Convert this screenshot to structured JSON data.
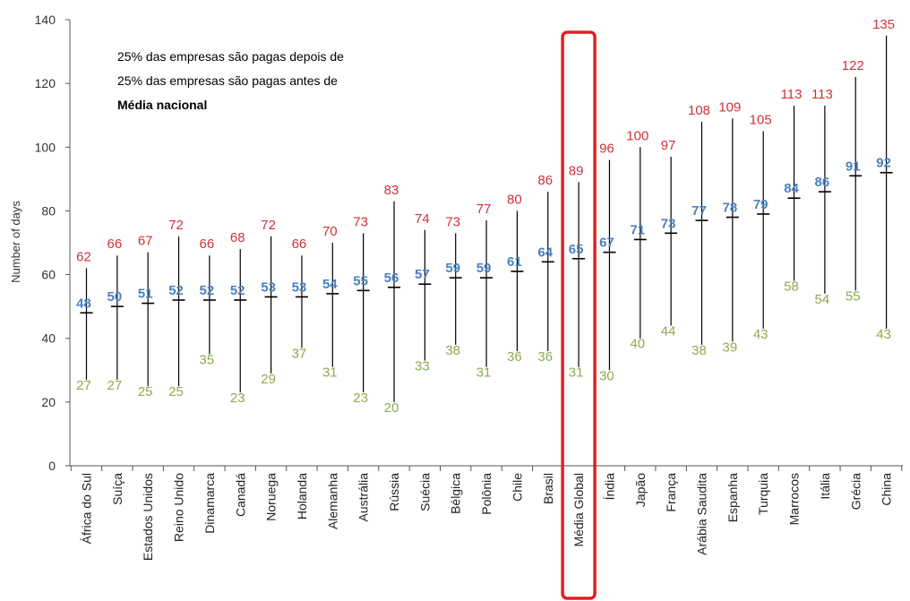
{
  "colors": {
    "upper": "#d0313a",
    "lower": "#8bab4f",
    "median": "#4a80c0",
    "highlight": "#e02020",
    "axis": "#555555",
    "whisker": "#000000"
  },
  "legend": {
    "upper_label": "25% das empresas são pagas depois de",
    "lower_label": "25% das empresas são pagas antes de",
    "median_label": "Média nacional"
  },
  "chart_data": {
    "type": "bar",
    "ylabel": "Number of days",
    "xlabel": "",
    "ylim": [
      0,
      140
    ],
    "yticks": [
      0,
      20,
      40,
      60,
      80,
      100,
      120,
      140
    ],
    "highlight_category": "Média Global",
    "categories": [
      "África do Sul",
      "Suíça",
      "Estados Unidos",
      "Reino Unido",
      "Dinamarca",
      "Canadá",
      "Noruega",
      "Holanda",
      "Alemanha",
      "Austrália",
      "Rússia",
      "Suécia",
      "Bélgica",
      "Polônia",
      "Chile",
      "Brasil",
      "Média Global",
      "Índia",
      "Japão",
      "França",
      "Arábia Saudita",
      "Espanha",
      "Turquia",
      "Marrocos",
      "Itália",
      "Grécia",
      "China"
    ],
    "series": [
      {
        "name": "25% das empresas são pagas depois de",
        "values": [
          62,
          66,
          67,
          72,
          66,
          68,
          72,
          66,
          70,
          73,
          83,
          74,
          73,
          77,
          80,
          86,
          89,
          96,
          100,
          97,
          108,
          109,
          105,
          113,
          113,
          122,
          135
        ]
      },
      {
        "name": "Média nacional",
        "values": [
          48,
          50,
          51,
          52,
          52,
          52,
          53,
          53,
          54,
          55,
          56,
          57,
          59,
          59,
          61,
          64,
          65,
          67,
          71,
          73,
          77,
          78,
          79,
          84,
          86,
          91,
          92
        ]
      },
      {
        "name": "25% das empresas são pagas antes de",
        "values": [
          27,
          27,
          25,
          25,
          35,
          23,
          29,
          37,
          31,
          23,
          20,
          33,
          38,
          31,
          36,
          36,
          31,
          30,
          40,
          44,
          38,
          39,
          43,
          58,
          54,
          55,
          43
        ]
      }
    ]
  }
}
